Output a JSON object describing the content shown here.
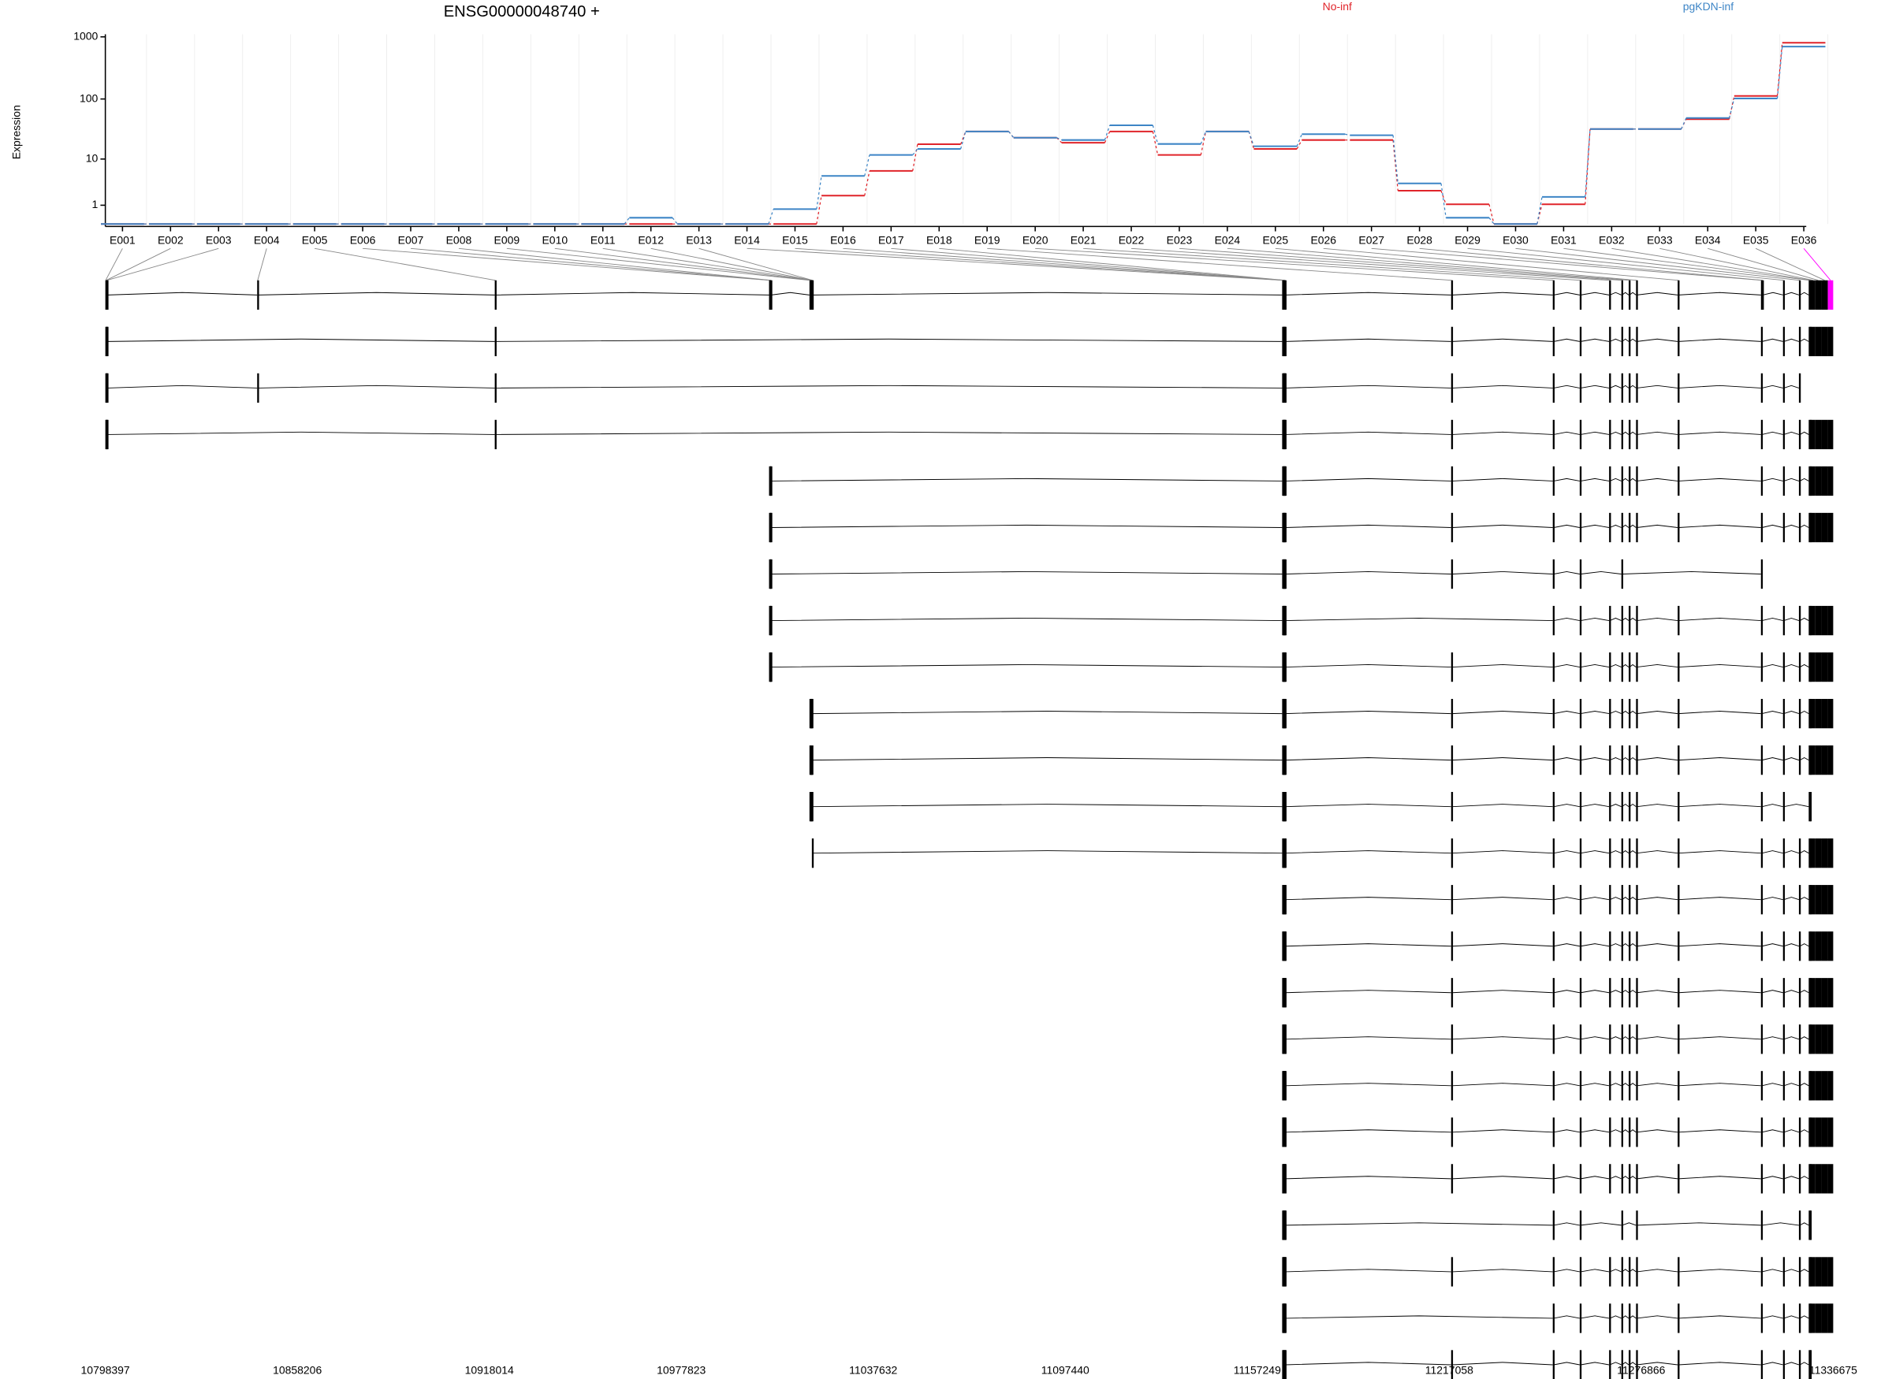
{
  "chart_data": [
    {
      "type": "step",
      "title": "ENSG00000048740 +",
      "y_label": "Expression",
      "legend": "top-right",
      "y_scale": "log1p",
      "categories": [
        "E001",
        "E002",
        "E003",
        "E004",
        "E005",
        "E006",
        "E007",
        "E008",
        "E009",
        "E010",
        "E011",
        "E012",
        "E013",
        "E014",
        "E015",
        "E016",
        "E017",
        "E018",
        "E019",
        "E020",
        "E021",
        "E022",
        "E023",
        "E024",
        "E025",
        "E026",
        "E027",
        "E028",
        "E029",
        "E030",
        "E031",
        "E032",
        "E033",
        "E034",
        "E035",
        "E036"
      ],
      "series": [
        {
          "name": "No-inf",
          "color": "#e0242a",
          "values": [
            0,
            0,
            0,
            0,
            0,
            0,
            0,
            0,
            0,
            0,
            0,
            0,
            0,
            0,
            0,
            1.85,
            6.1,
            18,
            29.4,
            23.2,
            19.1,
            29.4,
            11.8,
            29.4,
            15,
            21.2,
            21.2,
            2.42,
            1.07,
            0,
            1.07,
            32.3,
            32.3,
            47,
            112,
            803
          ]
        },
        {
          "name": "pgKDN-inf",
          "color": "#3d85c6",
          "values": [
            0,
            0,
            0,
            0,
            0,
            0,
            0,
            0,
            0,
            0,
            0,
            0.26,
            0,
            0,
            0.73,
            4.9,
            11.8,
            15,
            29.4,
            23.2,
            21.2,
            37.2,
            18.2,
            29.4,
            16.6,
            26.6,
            25.5,
            3.48,
            0.26,
            0,
            1.72,
            32.3,
            32.3,
            49,
            102,
            698
          ]
        }
      ],
      "ylim": [
        0,
        1100
      ],
      "yticks": [
        1,
        10,
        100,
        1000
      ]
    },
    {
      "type": "gene-model",
      "xlim": [
        10798397,
        11336675
      ],
      "xticks": [
        10798397,
        10858206,
        10918014,
        10977823,
        11037632,
        11097440,
        11157249,
        11217058,
        11276866,
        11336675
      ],
      "highlight_exon": "E036",
      "highlight_color": "#ff00ff",
      "exons": [
        [
          10798397,
          10798600
        ],
        [
          10798600,
          10798800
        ],
        [
          10798800,
          10799000
        ],
        [
          10845702,
          10846000
        ],
        [
          10919711,
          10920000
        ],
        [
          11005165,
          11005400
        ],
        [
          11005400,
          11005600
        ],
        [
          11005600,
          11005800
        ],
        [
          11017754,
          11018000
        ],
        [
          11018000,
          11018200
        ],
        [
          11018200,
          11018400
        ],
        [
          11018400,
          11018500
        ],
        [
          11018500,
          11018800
        ],
        [
          11165009,
          11165200
        ],
        [
          11165200,
          11165400
        ],
        [
          11165400,
          11165600
        ],
        [
          11165600,
          11165800
        ],
        [
          11165800,
          11166000
        ],
        [
          11217655,
          11218000
        ],
        [
          11249318,
          11249600
        ],
        [
          11257711,
          11258000
        ],
        [
          11266867,
          11267100
        ],
        [
          11270682,
          11270900
        ],
        [
          11272971,
          11273200
        ],
        [
          11275260,
          11275500
        ],
        [
          11288230,
          11288500
        ],
        [
          11314171,
          11314500
        ],
        [
          11314500,
          11314800
        ],
        [
          11321038,
          11321300
        ],
        [
          11325998,
          11326300
        ],
        [
          11329050,
          11329400
        ],
        [
          11329400,
          11329800
        ],
        [
          11329800,
          11331000
        ],
        [
          11331000,
          11333000
        ],
        [
          11333000,
          11335000
        ],
        [
          11335000,
          11336675
        ]
      ],
      "transcripts": [
        [
          "E001",
          "E002",
          "E003",
          "E005",
          "E014",
          "E015",
          "E016",
          "E017",
          "E018",
          "E019",
          "E020",
          "E021",
          "E022",
          "E023",
          "E024",
          "E025",
          "E026",
          "E027",
          "E029",
          "E030",
          "E031",
          "E032",
          "E033",
          "E034",
          "E035",
          "E036"
        ],
        [
          "E001",
          "E002",
          "E003",
          "E004",
          "E005",
          "E014",
          "E015",
          "E016",
          "E017",
          "E018",
          "E019",
          "E020",
          "E021",
          "E022",
          "E023",
          "E024",
          "E025",
          "E026",
          "E027",
          "E029",
          "E030"
        ],
        [
          "E001",
          "E002",
          "E003",
          "E005",
          "E014",
          "E015",
          "E016",
          "E017",
          "E018",
          "E019",
          "E020",
          "E021",
          "E022",
          "E023",
          "E024",
          "E025",
          "E026",
          "E027",
          "E029",
          "E030",
          "E031",
          "E032",
          "E033",
          "E034",
          "E035",
          "E036"
        ],
        [
          "E006",
          "E007",
          "E008",
          "E014",
          "E015",
          "E016",
          "E017",
          "E018",
          "E019",
          "E020",
          "E021",
          "E022",
          "E023",
          "E024",
          "E025",
          "E026",
          "E027",
          "E029",
          "E030",
          "E031",
          "E032",
          "E033",
          "E034",
          "E035",
          "E036"
        ],
        [
          "E006",
          "E007",
          "E008",
          "E014",
          "E015",
          "E016",
          "E017",
          "E018",
          "E019",
          "E020",
          "E021",
          "E022",
          "E023",
          "E024",
          "E025",
          "E026",
          "E027",
          "E029",
          "E030",
          "E031",
          "E032",
          "E033",
          "E034",
          "E035",
          "E036"
        ],
        [
          "E006",
          "E007",
          "E008",
          "E014",
          "E015",
          "E016",
          "E017",
          "E018",
          "E019",
          "E020",
          "E021",
          "E023",
          "E027"
        ],
        [
          "E006",
          "E007",
          "E008",
          "E014",
          "E015",
          "E016",
          "E017",
          "E018",
          "E020",
          "E021",
          "E022",
          "E023",
          "E024",
          "E025",
          "E026",
          "E027",
          "E029",
          "E030",
          "E031",
          "E032",
          "E033",
          "E034",
          "E035",
          "E036"
        ],
        [
          "E006",
          "E007",
          "E008",
          "E014",
          "E015",
          "E016",
          "E017",
          "E018",
          "E019",
          "E020",
          "E021",
          "E022",
          "E023",
          "E024",
          "E025",
          "E026",
          "E027",
          "E029",
          "E030",
          "E031",
          "E032",
          "E033",
          "E034",
          "E035",
          "E036"
        ],
        [
          "E009",
          "E010",
          "E011",
          "E012",
          "E014",
          "E015",
          "E016",
          "E017",
          "E018",
          "E019",
          "E020",
          "E021",
          "E022",
          "E023",
          "E024",
          "E025",
          "E026",
          "E027",
          "E029",
          "E030",
          "E031",
          "E032",
          "E033",
          "E034",
          "E035",
          "E036"
        ],
        [
          "E009",
          "E010",
          "E011",
          "E012",
          "E014",
          "E015",
          "E016",
          "E017",
          "E018",
          "E019",
          "E020",
          "E021",
          "E022",
          "E023",
          "E024",
          "E025",
          "E026",
          "E027",
          "E029",
          "E030",
          "E031",
          "E032",
          "E033",
          "E034",
          "E035",
          "E036"
        ],
        [
          "E009",
          "E010",
          "E011",
          "E012",
          "E014",
          "E015",
          "E016",
          "E017",
          "E018",
          "E019",
          "E020",
          "E021",
          "E022",
          "E023",
          "E024",
          "E025",
          "E026",
          "E027",
          "E029",
          "E031",
          "E032"
        ],
        [
          "E013",
          "E014",
          "E015",
          "E016",
          "E017",
          "E018",
          "E019",
          "E020",
          "E021",
          "E022",
          "E023",
          "E024",
          "E025",
          "E026",
          "E027",
          "E029",
          "E030",
          "E031",
          "E032",
          "E033",
          "E034",
          "E035",
          "E036"
        ],
        [
          "E014",
          "E015",
          "E016",
          "E017",
          "E018",
          "E019",
          "E020",
          "E021",
          "E022",
          "E023",
          "E024",
          "E025",
          "E026",
          "E027",
          "E029",
          "E030",
          "E031",
          "E032",
          "E033",
          "E034",
          "E035",
          "E036"
        ],
        [
          "E014",
          "E015",
          "E016",
          "E017",
          "E018",
          "E019",
          "E020",
          "E021",
          "E022",
          "E023",
          "E024",
          "E025",
          "E026",
          "E027",
          "E029",
          "E030",
          "E031",
          "E032",
          "E033",
          "E034",
          "E035",
          "E036"
        ],
        [
          "E014",
          "E015",
          "E016",
          "E017",
          "E018",
          "E019",
          "E020",
          "E021",
          "E022",
          "E023",
          "E024",
          "E025",
          "E026",
          "E027",
          "E029",
          "E030",
          "E031",
          "E032",
          "E033",
          "E034",
          "E035",
          "E036"
        ],
        [
          "E014",
          "E015",
          "E016",
          "E017",
          "E018",
          "E019",
          "E020",
          "E021",
          "E022",
          "E023",
          "E024",
          "E025",
          "E026",
          "E027",
          "E029",
          "E030",
          "E031",
          "E032",
          "E033",
          "E034",
          "E035",
          "E036"
        ],
        [
          "E014",
          "E015",
          "E016",
          "E017",
          "E018",
          "E019",
          "E020",
          "E021",
          "E022",
          "E023",
          "E024",
          "E025",
          "E026",
          "E027",
          "E029",
          "E030",
          "E031",
          "E032",
          "E033",
          "E034",
          "E035",
          "E036"
        ],
        [
          "E014",
          "E015",
          "E016",
          "E017",
          "E018",
          "E019",
          "E020",
          "E021",
          "E022",
          "E023",
          "E024",
          "E025",
          "E026",
          "E027",
          "E029",
          "E030",
          "E031",
          "E032",
          "E033",
          "E034",
          "E035",
          "E036"
        ],
        [
          "E014",
          "E015",
          "E016",
          "E017",
          "E018",
          "E019",
          "E020",
          "E021",
          "E022",
          "E023",
          "E024",
          "E025",
          "E026",
          "E027",
          "E029",
          "E030",
          "E031",
          "E032",
          "E033",
          "E034",
          "E035",
          "E036"
        ],
        [
          "E014",
          "E015",
          "E016",
          "E017",
          "E018",
          "E020",
          "E021",
          "E023",
          "E025",
          "E027",
          "E030",
          "E031",
          "E032"
        ],
        [
          "E014",
          "E015",
          "E016",
          "E017",
          "E018",
          "E019",
          "E020",
          "E021",
          "E022",
          "E023",
          "E024",
          "E025",
          "E026",
          "E027",
          "E029",
          "E030",
          "E031",
          "E032",
          "E033",
          "E034",
          "E035",
          "E036"
        ],
        [
          "E014",
          "E015",
          "E016",
          "E017",
          "E018",
          "E020",
          "E021",
          "E022",
          "E023",
          "E024",
          "E025",
          "E026",
          "E027",
          "E029",
          "E030",
          "E031",
          "E032",
          "E033",
          "E034",
          "E035",
          "E036"
        ],
        [
          "E014",
          "E015",
          "E016",
          "E017",
          "E018",
          "E019",
          "E020",
          "E021",
          "E022",
          "E023",
          "E024",
          "E025",
          "E026",
          "E027",
          "E029",
          "E030",
          "E031",
          "E032"
        ]
      ]
    }
  ]
}
